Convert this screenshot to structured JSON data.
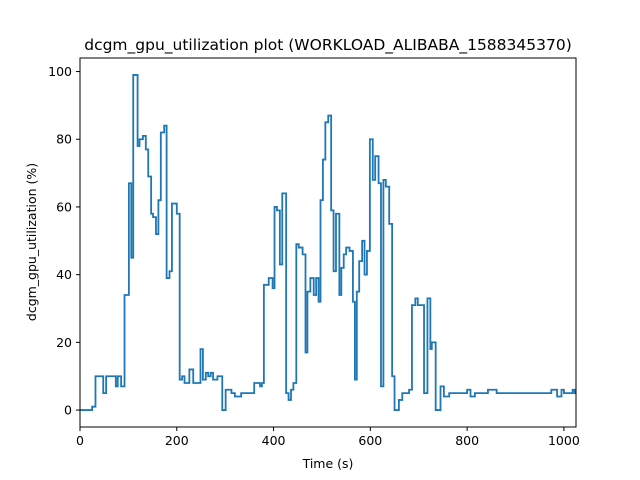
{
  "chart_data": {
    "type": "line",
    "title": "dcgm_gpu_utilization plot (WORKLOAD_ALIBABA_1588345370)",
    "xlabel": "Time (s)",
    "ylabel": "dcgm_gpu_utilization (%)",
    "xlim": [
      0,
      1025
    ],
    "ylim": [
      -5,
      104
    ],
    "x_ticks": [
      0,
      200,
      400,
      600,
      800,
      1000
    ],
    "y_ticks": [
      0,
      20,
      40,
      60,
      80,
      100
    ],
    "grid": false,
    "line_color": "#1f77b4",
    "series": [
      {
        "name": "",
        "step": "post",
        "x": [
          0,
          25,
          32,
          48,
          54,
          74,
          78,
          85,
          92,
          101,
          106,
          110,
          119,
          123,
          130,
          136,
          141,
          147,
          151,
          157,
          162,
          167,
          174,
          179,
          185,
          190,
          200,
          206,
          211,
          216,
          226,
          234,
          249,
          254,
          260,
          265,
          270,
          275,
          284,
          294,
          301,
          313,
          320,
          333,
          341,
          354,
          360,
          372,
          376,
          380,
          390,
          398,
          402,
          407,
          413,
          418,
          426,
          431,
          436,
          441,
          447,
          452,
          460,
          466,
          470,
          476,
          483,
          488,
          493,
          497,
          502,
          507,
          513,
          519,
          524,
          529,
          536,
          540,
          545,
          550,
          557,
          564,
          568,
          572,
          577,
          583,
          588,
          593,
          599,
          605,
          610,
          617,
          622,
          627,
          632,
          639,
          645,
          650,
          659,
          666,
          675,
          680,
          686,
          693,
          698,
          705,
          711,
          718,
          724,
          727,
          735,
          740,
          745,
          752,
          763,
          778,
          800,
          807,
          816,
          825,
          843,
          849,
          861,
          865,
          870,
          876,
          880,
          898,
          912,
          916,
          921,
          930,
          940,
          955,
          961,
          974,
          986,
          995,
          1000,
          1014,
          1018,
          1022
        ],
        "y": [
          0,
          1,
          10,
          5,
          10,
          7,
          10,
          7,
          34,
          67,
          45,
          99,
          78,
          80,
          81,
          77,
          69,
          58,
          57,
          52,
          62,
          82,
          84,
          39,
          41,
          61,
          58,
          9,
          10,
          8,
          12,
          8,
          18,
          9,
          11,
          10,
          11,
          9,
          10,
          0,
          6,
          5,
          4,
          5,
          5,
          5,
          8,
          7,
          8,
          37,
          39,
          36,
          60,
          59,
          43,
          64,
          5,
          3,
          6,
          8,
          49,
          48,
          46,
          17,
          35,
          39,
          34,
          39,
          32,
          62,
          74,
          85,
          87,
          59,
          41,
          58,
          34,
          42,
          46,
          48,
          47,
          32,
          9,
          35,
          44,
          50,
          40,
          47,
          80,
          68,
          75,
          67,
          7,
          68,
          66,
          55,
          10,
          0,
          3,
          5,
          5,
          6,
          31,
          33,
          31,
          31,
          5,
          33,
          18,
          20,
          0,
          0,
          7,
          4,
          5,
          5,
          6,
          4,
          5,
          5,
          6,
          6,
          5,
          5,
          5,
          5,
          5,
          5,
          5,
          5,
          5,
          5,
          5,
          5,
          5,
          6,
          4,
          6,
          5,
          5,
          6,
          5
        ]
      }
    ]
  }
}
